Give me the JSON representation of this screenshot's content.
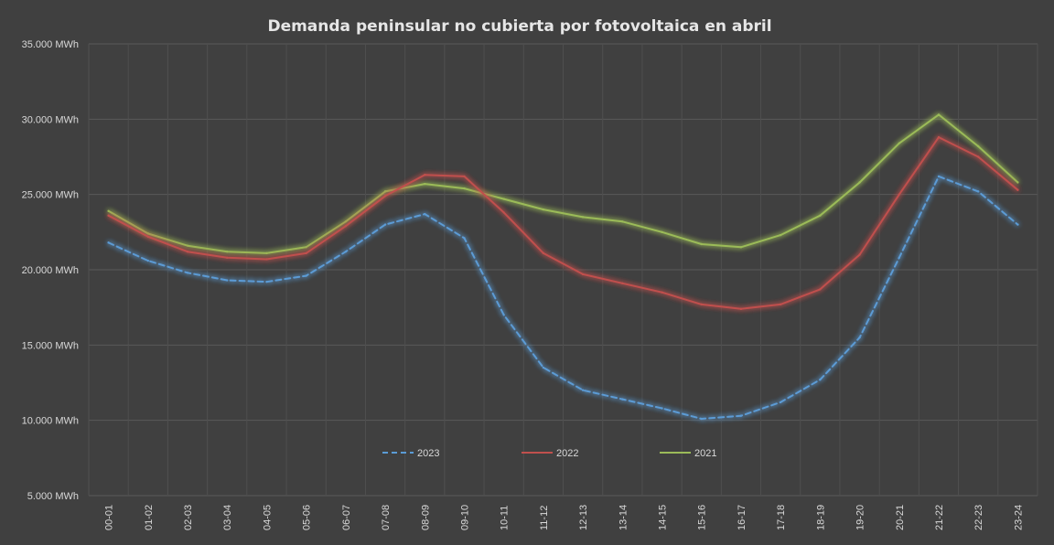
{
  "chart_data": {
    "type": "line",
    "title": "Demanda peninsular no cubierta por fotovoltaica en abril",
    "xlabel": "",
    "ylabel": "",
    "ylim": [
      5000,
      35000
    ],
    "yticks": [
      5000,
      10000,
      15000,
      20000,
      25000,
      30000,
      35000
    ],
    "ytick_labels": [
      "5.000 MWh",
      "10.000 MWh",
      "15.000 MWh",
      "20.000 MWh",
      "25.000 MWh",
      "30.000 MWh",
      "35.000 MWh"
    ],
    "categories": [
      "00-01",
      "01-02",
      "02-03",
      "03-04",
      "04-05",
      "05-06",
      "06-07",
      "07-08",
      "08-09",
      "09-10",
      "10-11",
      "11-12",
      "12-13",
      "13-14",
      "14-15",
      "15-16",
      "16-17",
      "17-18",
      "18-19",
      "19-20",
      "20-21",
      "21-22",
      "22-23",
      "23-24"
    ],
    "grid": true,
    "legend_position": "bottom-inside",
    "series": [
      {
        "name": "2023",
        "color": "#5b9bd5",
        "dash": "dashed",
        "values": [
          21800,
          20600,
          19800,
          19300,
          19200,
          19600,
          21200,
          23000,
          23700,
          22100,
          17000,
          13500,
          12000,
          11400,
          10800,
          10100,
          10300,
          11200,
          12700,
          15500,
          20800,
          26200,
          25200,
          23000
        ]
      },
      {
        "name": "2022",
        "color": "#c0504d",
        "dash": "solid",
        "values": [
          23600,
          22200,
          21200,
          20800,
          20700,
          21100,
          22900,
          24900,
          26300,
          26200,
          23800,
          21100,
          19700,
          19100,
          18500,
          17700,
          17400,
          17700,
          18700,
          21000,
          25000,
          28800,
          27500,
          25300
        ]
      },
      {
        "name": "2021",
        "color": "#9bbb59",
        "dash": "solid",
        "values": [
          23900,
          22400,
          21600,
          21200,
          21100,
          21500,
          23200,
          25200,
          25700,
          25400,
          24700,
          24000,
          23500,
          23200,
          22500,
          21700,
          21500,
          22300,
          23600,
          25800,
          28400,
          30300,
          28200,
          25800
        ]
      }
    ]
  }
}
